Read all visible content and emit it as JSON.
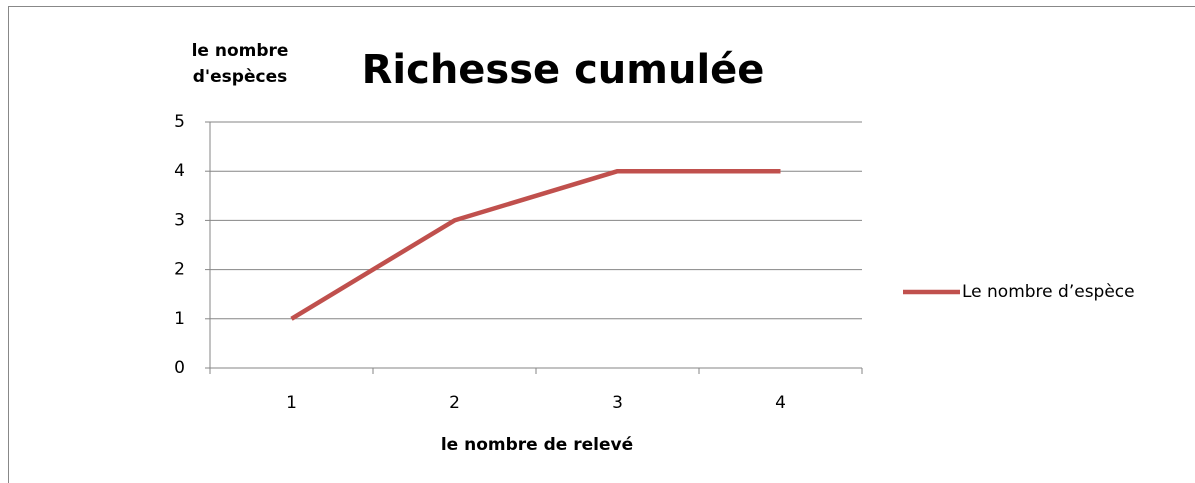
{
  "chart_data": {
    "type": "line",
    "title": "Richesse cumulée",
    "y_label": "le nombre d'espèces",
    "x_label": "le nombre de relevé",
    "categories": [
      "1",
      "2",
      "3",
      "4"
    ],
    "series": [
      {
        "name": "Le nombre d’espèce",
        "color": "#c0504d",
        "values": [
          1,
          3,
          4,
          4
        ]
      }
    ],
    "ylim": [
      0,
      5
    ],
    "yticks": [
      0,
      1,
      2,
      3,
      4,
      5
    ],
    "grid": true,
    "legend": "right"
  }
}
